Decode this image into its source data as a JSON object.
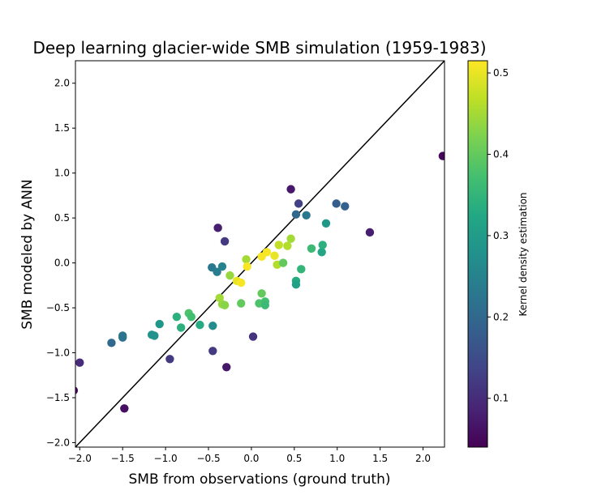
{
  "chart_data": {
    "type": "scatter",
    "title": "Deep learning glacier-wide SMB simulation (1959-1983)",
    "xlabel": "SMB from observations (ground truth)",
    "ylabel": "SMB modeled by ANN",
    "xlim": [
      -2.05,
      2.25
    ],
    "ylim": [
      -2.05,
      2.25
    ],
    "xticks": [
      -2.0,
      -1.5,
      -1.0,
      -0.5,
      0.0,
      0.5,
      1.0,
      1.5,
      2.0
    ],
    "yticks": [
      -2.0,
      -1.5,
      -1.0,
      -0.5,
      0.0,
      0.5,
      1.0,
      1.5,
      2.0
    ],
    "xtick_labels": [
      "−2.0",
      "−1.5",
      "−1.0",
      "−0.5",
      "0.0",
      "0.5",
      "1.0",
      "1.5",
      "2.0"
    ],
    "ytick_labels": [
      "−2.0",
      "−1.5",
      "−1.0",
      "−0.5",
      "0.0",
      "0.5",
      "1.0",
      "1.5",
      "2.0"
    ],
    "reference_line": {
      "from": [
        -2.05,
        -2.05
      ],
      "to": [
        2.25,
        2.25
      ],
      "color": "#000000"
    },
    "colormap": "viridis",
    "colorbar": {
      "label": "Kernel density estimation",
      "range": [
        0.04,
        0.515
      ],
      "ticks": [
        0.1,
        0.2,
        0.3,
        0.4,
        0.5
      ],
      "tick_labels": [
        "0.1",
        "0.2",
        "0.3",
        "0.4",
        "0.5"
      ]
    },
    "grid": false,
    "points": [
      {
        "x": -2.07,
        "y": -1.42,
        "c": 0.05
      },
      {
        "x": -2.0,
        "y": -1.11,
        "c": 0.1
      },
      {
        "x": -1.48,
        "y": -1.62,
        "c": 0.06
      },
      {
        "x": -1.63,
        "y": -0.89,
        "c": 0.2
      },
      {
        "x": -1.5,
        "y": -0.81,
        "c": 0.22
      },
      {
        "x": -1.5,
        "y": -0.83,
        "c": 0.22
      },
      {
        "x": -1.16,
        "y": -0.8,
        "c": 0.28
      },
      {
        "x": -1.13,
        "y": -0.81,
        "c": 0.28
      },
      {
        "x": -1.07,
        "y": -0.68,
        "c": 0.29
      },
      {
        "x": -0.95,
        "y": -1.07,
        "c": 0.12
      },
      {
        "x": -0.87,
        "y": -0.6,
        "c": 0.34
      },
      {
        "x": -0.82,
        "y": -0.72,
        "c": 0.34
      },
      {
        "x": -0.73,
        "y": -0.56,
        "c": 0.38
      },
      {
        "x": -0.7,
        "y": -0.6,
        "c": 0.37
      },
      {
        "x": -0.6,
        "y": -0.69,
        "c": 0.33
      },
      {
        "x": -0.45,
        "y": -0.7,
        "c": 0.27
      },
      {
        "x": -0.45,
        "y": -0.98,
        "c": 0.12
      },
      {
        "x": -0.46,
        "y": -0.05,
        "c": 0.23
      },
      {
        "x": -0.4,
        "y": -0.1,
        "c": 0.24
      },
      {
        "x": -0.34,
        "y": -0.04,
        "c": 0.25
      },
      {
        "x": -0.39,
        "y": 0.39,
        "c": 0.08
      },
      {
        "x": -0.31,
        "y": 0.24,
        "c": 0.12
      },
      {
        "x": -0.29,
        "y": -1.16,
        "c": 0.07
      },
      {
        "x": -0.37,
        "y": -0.39,
        "c": 0.45
      },
      {
        "x": -0.34,
        "y": -0.46,
        "c": 0.44
      },
      {
        "x": -0.31,
        "y": -0.47,
        "c": 0.43
      },
      {
        "x": -0.25,
        "y": -0.14,
        "c": 0.44
      },
      {
        "x": -0.17,
        "y": -0.2,
        "c": 0.5
      },
      {
        "x": -0.12,
        "y": -0.22,
        "c": 0.51
      },
      {
        "x": -0.12,
        "y": -0.45,
        "c": 0.4
      },
      {
        "x": -0.06,
        "y": 0.04,
        "c": 0.45
      },
      {
        "x": -0.05,
        "y": -0.04,
        "c": 0.51
      },
      {
        "x": 0.02,
        "y": -0.82,
        "c": 0.11
      },
      {
        "x": 0.09,
        "y": -0.45,
        "c": 0.38
      },
      {
        "x": 0.12,
        "y": -0.34,
        "c": 0.4
      },
      {
        "x": 0.16,
        "y": -0.43,
        "c": 0.37
      },
      {
        "x": 0.16,
        "y": -0.47,
        "c": 0.36
      },
      {
        "x": 0.12,
        "y": 0.07,
        "c": 0.51
      },
      {
        "x": 0.18,
        "y": 0.12,
        "c": 0.51
      },
      {
        "x": 0.27,
        "y": 0.08,
        "c": 0.5
      },
      {
        "x": 0.3,
        "y": -0.02,
        "c": 0.46
      },
      {
        "x": 0.32,
        "y": 0.2,
        "c": 0.47
      },
      {
        "x": 0.37,
        "y": 0.0,
        "c": 0.4
      },
      {
        "x": 0.42,
        "y": 0.19,
        "c": 0.46
      },
      {
        "x": 0.46,
        "y": 0.27,
        "c": 0.45
      },
      {
        "x": 0.46,
        "y": 0.82,
        "c": 0.07
      },
      {
        "x": 0.52,
        "y": -0.2,
        "c": 0.33
      },
      {
        "x": 0.52,
        "y": -0.24,
        "c": 0.31
      },
      {
        "x": 0.52,
        "y": 0.54,
        "c": 0.2
      },
      {
        "x": 0.55,
        "y": 0.66,
        "c": 0.13
      },
      {
        "x": 0.58,
        "y": -0.07,
        "c": 0.35
      },
      {
        "x": 0.64,
        "y": 0.53,
        "c": 0.23
      },
      {
        "x": 0.7,
        "y": 0.16,
        "c": 0.36
      },
      {
        "x": 0.82,
        "y": 0.12,
        "c": 0.32
      },
      {
        "x": 0.83,
        "y": 0.2,
        "c": 0.34
      },
      {
        "x": 0.87,
        "y": 0.44,
        "c": 0.29
      },
      {
        "x": 0.99,
        "y": 0.66,
        "c": 0.18
      },
      {
        "x": 1.09,
        "y": 0.63,
        "c": 0.19
      },
      {
        "x": 1.38,
        "y": 0.34,
        "c": 0.08
      },
      {
        "x": 2.23,
        "y": 1.19,
        "c": 0.05
      }
    ]
  }
}
